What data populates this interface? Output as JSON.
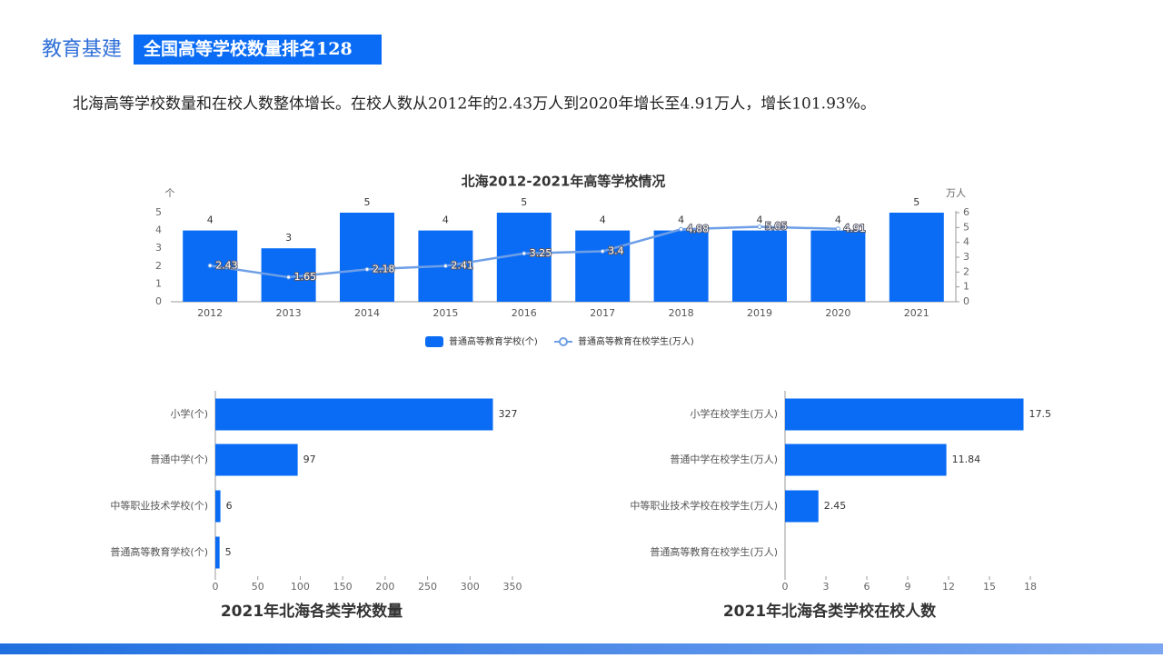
{
  "header": {
    "section": "教育基建",
    "badge": "全国高等学校数量排名128"
  },
  "summary": "北海高等学校数量和在校人数整体增长。在校人数从2012年的2.43万人到2020年增长至4.91万人，增长101.93%。",
  "chart_data": [
    {
      "type": "combo",
      "title": "北海2012-2021年高等学校情况",
      "categories": [
        "2012",
        "2013",
        "2014",
        "2015",
        "2016",
        "2017",
        "2018",
        "2019",
        "2020",
        "2021"
      ],
      "y_label": "个",
      "y2_label": "万人",
      "ylim": [
        0,
        5
      ],
      "yticks": [
        0,
        1,
        2,
        3,
        4,
        5
      ],
      "y2lim": [
        0,
        6
      ],
      "y2ticks": [
        0,
        1,
        2,
        3,
        4,
        5,
        6
      ],
      "series": [
        {
          "name": "普通高等教育学校(个)",
          "kind": "bar",
          "color": "#0a6cf5",
          "values": [
            4,
            3,
            5,
            4,
            5,
            4,
            4,
            4,
            4,
            5
          ]
        },
        {
          "name": "普通高等教育在校学生(万人)",
          "kind": "line",
          "axis": "y2",
          "color": "#6e9fe6",
          "values": [
            2.43,
            1.65,
            2.18,
            2.41,
            3.25,
            3.4,
            4.88,
            5.05,
            4.91,
            null
          ]
        }
      ]
    },
    {
      "type": "hbar",
      "title": "2021年北海各类学校数量",
      "categories": [
        "小学(个)",
        "普通中学(个)",
        "中等职业技术学校(个)",
        "普通高等教育学校(个)"
      ],
      "values": [
        327,
        97,
        6,
        5
      ],
      "color": "#0a6cf5",
      "xlim": [
        0,
        350
      ],
      "xticks": [
        0,
        50,
        100,
        150,
        200,
        250,
        300,
        350
      ]
    },
    {
      "type": "hbar",
      "title": "2021年北海各类学校在校人数",
      "categories": [
        "小学在校学生(万人)",
        "普通中学在校学生(万人)",
        "中等职业技术学校在校学生(万人)",
        "普通高等教育在校学生(万人)"
      ],
      "values": [
        17.5,
        11.84,
        2.45,
        null
      ],
      "color": "#0a6cf5",
      "xlim": [
        0,
        18
      ],
      "xticks": [
        0,
        3,
        6,
        9,
        12,
        15,
        18
      ]
    }
  ]
}
